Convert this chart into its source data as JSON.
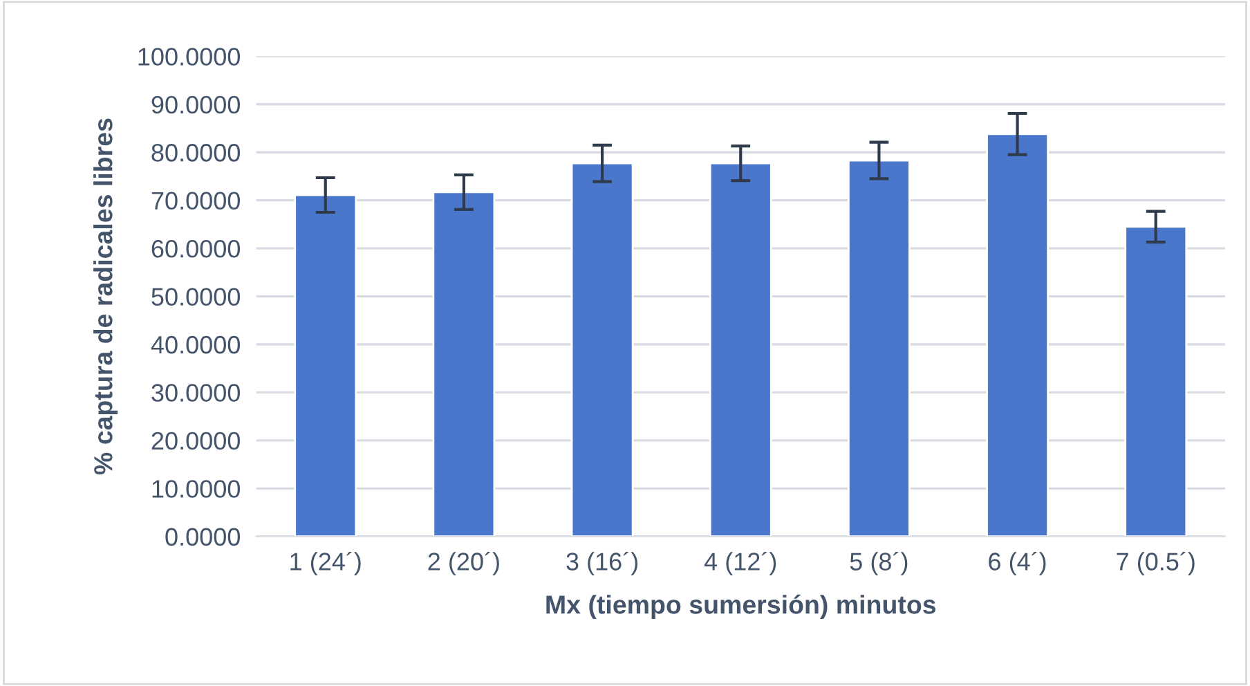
{
  "chart_data": {
    "type": "bar",
    "xlabel": "Mx (tiempo sumersión) minutos",
    "ylabel": "% captura de radicales libres",
    "categories": [
      "1 (24´)",
      "2 (20´)",
      "3 (16´)",
      "4 (12´)",
      "5 (8´)",
      "6 (4´)",
      "7 (0.5´)"
    ],
    "values": [
      71.1,
      71.7,
      77.7,
      77.7,
      78.3,
      83.8,
      64.5
    ],
    "errors": [
      3.6,
      3.6,
      3.8,
      3.6,
      3.8,
      4.3,
      3.2
    ],
    "color": "#4a76cc",
    "ylim": [
      0,
      100
    ],
    "yticks": [
      {
        "value": 0,
        "label": "0.0000"
      },
      {
        "value": 10,
        "label": "10.0000"
      },
      {
        "value": 20,
        "label": "20.0000"
      },
      {
        "value": 30,
        "label": "30.0000"
      },
      {
        "value": 40,
        "label": "40.0000"
      },
      {
        "value": 50,
        "label": "50.0000"
      },
      {
        "value": 60,
        "label": "60.0000"
      },
      {
        "value": 70,
        "label": "70.0000"
      },
      {
        "value": 80,
        "label": "80.0000"
      },
      {
        "value": 90,
        "label": "90.0000"
      },
      {
        "value": 100,
        "label": "100.0000"
      }
    ],
    "grid": "y"
  }
}
